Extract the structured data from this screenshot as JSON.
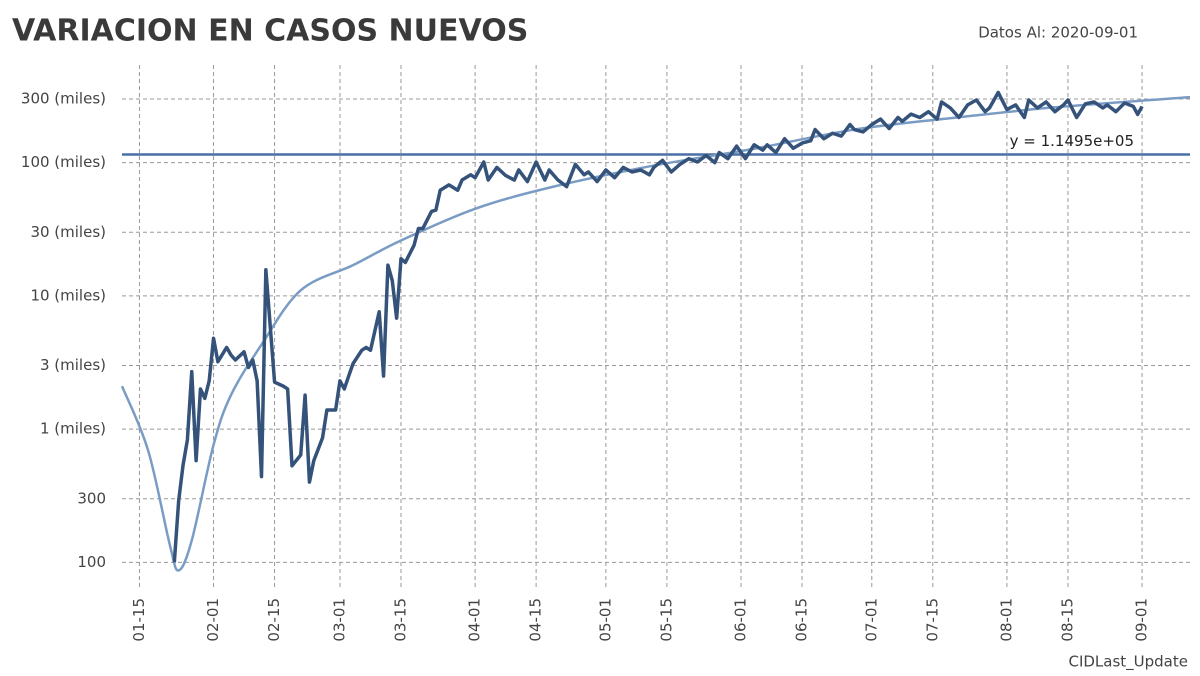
{
  "chart_data": {
    "type": "line",
    "title": "VARIACION EN CASOS NUEVOS",
    "subtitle": "Datos Al: 2020-09-01",
    "footer": "CIDLast_Update",
    "xlim": [
      "01-11",
      "09-12"
    ],
    "xticks": [
      "01-15",
      "02-01",
      "02-15",
      "03-01",
      "03-15",
      "04-01",
      "04-15",
      "05-01",
      "05-15",
      "06-01",
      "06-15",
      "07-01",
      "07-15",
      "08-01",
      "08-15",
      "09-01"
    ],
    "ylim": [
      62,
      540000
    ],
    "log_scale": true,
    "grid": true,
    "yticks": [
      100,
      300,
      {
        "value": 1000,
        "label": "1 (miles)"
      },
      {
        "value": 3000,
        "label": "3 (miles)"
      },
      {
        "value": 10000,
        "label": "10 (miles)"
      },
      {
        "value": 30000,
        "label": "30 (miles)"
      },
      {
        "value": 100000,
        "label": "100 (miles)"
      },
      {
        "value": 300000,
        "label": "300 (miles)"
      }
    ],
    "hline": {
      "value": 114950,
      "label": "y = 1.1495e+05",
      "color": "#4a6fa5"
    },
    "series": [
      {
        "color": "#34527a",
        "x": [
          "01-23",
          "01-24",
          "01-25",
          "01-26",
          "01-27",
          "01-28",
          "01-29",
          "01-30",
          "01-31",
          "02-01",
          "02-02",
          "02-04",
          "02-05",
          "02-06",
          "02-08",
          "02-09",
          "02-10",
          "02-11",
          "02-12",
          "02-13",
          "02-15",
          "02-17",
          "02-18",
          "02-19",
          "02-21",
          "02-22",
          "02-23",
          "02-24",
          "02-26",
          "02-27",
          "02-29",
          "03-01",
          "03-02",
          "03-03",
          "03-04",
          "03-06",
          "03-07",
          "03-08",
          "03-10",
          "03-11",
          "03-12",
          "03-13",
          "03-14",
          "03-15",
          "03-16",
          "03-18",
          "03-19",
          "03-20",
          "03-22",
          "03-23",
          "03-24",
          "03-26",
          "03-28",
          "03-29",
          "03-31",
          "04-01",
          "04-03",
          "04-04",
          "04-06",
          "04-08",
          "04-10",
          "04-11",
          "04-13",
          "04-15",
          "04-17",
          "04-18",
          "04-20",
          "04-22",
          "04-24",
          "04-26",
          "04-27",
          "04-29",
          "05-01",
          "05-03",
          "05-05",
          "05-07",
          "05-09",
          "05-11",
          "05-12",
          "05-14",
          "05-16",
          "05-18",
          "05-20",
          "05-22",
          "05-24",
          "05-26",
          "05-27",
          "05-29",
          "05-31",
          "06-02",
          "06-04",
          "06-06",
          "06-07",
          "06-09",
          "06-11",
          "06-13",
          "06-15",
          "06-17",
          "06-18",
          "06-20",
          "06-22",
          "06-24",
          "06-26",
          "06-27",
          "06-29",
          "07-01",
          "07-03",
          "07-05",
          "07-07",
          "07-08",
          "07-10",
          "07-12",
          "07-14",
          "07-16",
          "07-17",
          "07-19",
          "07-21",
          "07-23",
          "07-25",
          "07-27",
          "07-28",
          "07-30",
          "08-01",
          "08-03",
          "08-05",
          "08-06",
          "08-08",
          "08-10",
          "08-12",
          "08-14",
          "08-15",
          "08-17",
          "08-19",
          "08-21",
          "08-23",
          "08-24",
          "08-26",
          "08-28",
          "08-30",
          "08-31",
          "09-01"
        ],
        "values": [
          100,
          290,
          535,
          830,
          2700,
          580,
          2000,
          1700,
          2300,
          4800,
          3200,
          4100,
          3600,
          3300,
          3800,
          2900,
          3300,
          2300,
          440,
          15700,
          2250,
          2100,
          2000,
          530,
          640,
          1800,
          400,
          580,
          860,
          1390,
          1390,
          2300,
          2000,
          2500,
          3100,
          3900,
          4100,
          3900,
          7600,
          2500,
          17000,
          13000,
          6800,
          19000,
          17800,
          24000,
          32000,
          32000,
          43000,
          44000,
          62000,
          68000,
          62000,
          74000,
          81000,
          77000,
          101000,
          74000,
          92000,
          80000,
          74000,
          88000,
          72000,
          101000,
          74000,
          88000,
          74000,
          66000,
          97000,
          81000,
          85000,
          72000,
          88000,
          77000,
          92000,
          85000,
          88000,
          81000,
          92000,
          104000,
          85000,
          97000,
          107000,
          101000,
          113000,
          100000,
          119000,
          107000,
          133000,
          107000,
          136000,
          124000,
          136000,
          119000,
          151000,
          128000,
          140000,
          146000,
          177000,
          151000,
          166000,
          158000,
          193000,
          177000,
          170000,
          193000,
          212000,
          180000,
          218000,
          204000,
          231000,
          218000,
          241000,
          212000,
          285000,
          257000,
          218000,
          271000,
          295000,
          241000,
          257000,
          336000,
          250000,
          271000,
          218000,
          295000,
          257000,
          285000,
          241000,
          271000,
          295000,
          218000,
          276000,
          285000,
          257000,
          271000,
          241000,
          280000,
          264000,
          230000,
          264000
        ]
      },
      {
        "color": "#7a9cc4",
        "x": [
          "01-11",
          "01-17",
          "01-22",
          "01-24",
          "01-27",
          "02-01",
          "02-05",
          "02-12",
          "02-21",
          "03-04",
          "03-15",
          "04-01",
          "04-19",
          "05-12",
          "06-04",
          "06-27",
          "07-20",
          "08-12",
          "09-12"
        ],
        "values": [
          2100,
          690,
          134,
          87,
          146,
          760,
          1800,
          4300,
          11000,
          17000,
          26000,
          45000,
          66000,
          95000,
          127000,
          177000,
          217000,
          260000,
          310000
        ]
      }
    ]
  }
}
